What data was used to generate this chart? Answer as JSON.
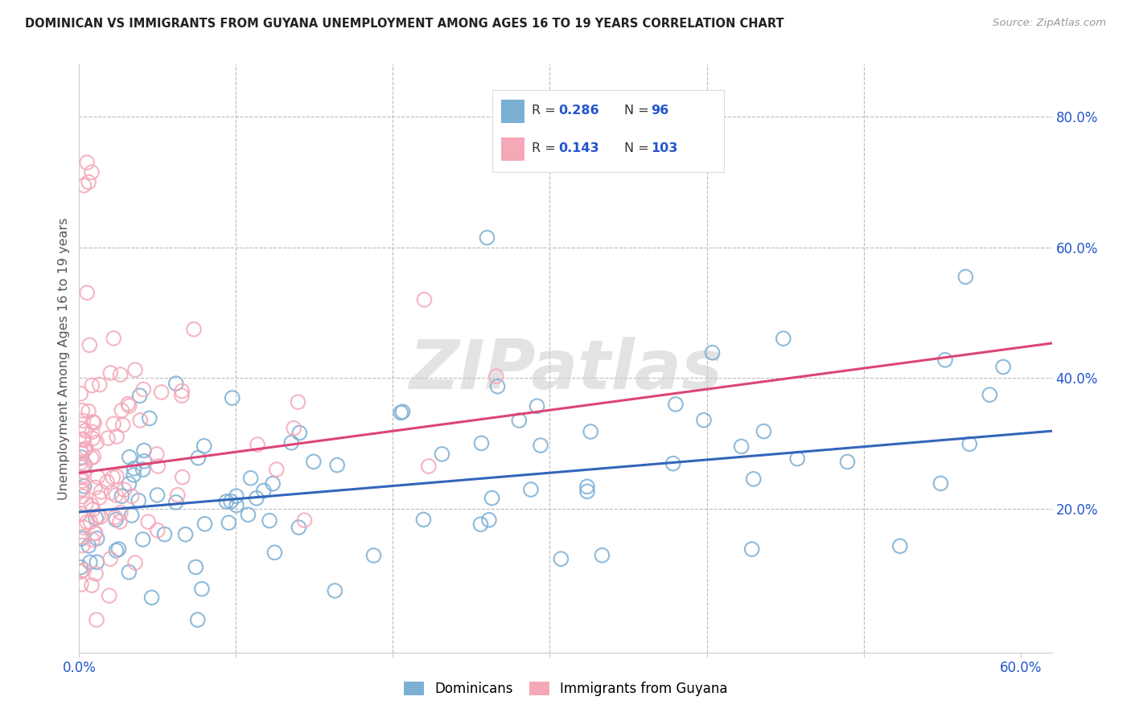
{
  "title": "DOMINICAN VS IMMIGRANTS FROM GUYANA UNEMPLOYMENT AMONG AGES 16 TO 19 YEARS CORRELATION CHART",
  "source": "Source: ZipAtlas.com",
  "ylabel": "Unemployment Among Ages 16 to 19 years",
  "xlim": [
    0.0,
    0.62
  ],
  "ylim": [
    -0.02,
    0.88
  ],
  "blue_color": "#7BAFD4",
  "pink_color": "#F4A8B8",
  "blue_line_color": "#3366BB",
  "pink_line_color": "#DD4477",
  "n_color": "#2255CC",
  "watermark": "ZIPatlas",
  "blue_R": 0.286,
  "blue_N": 96,
  "pink_R": 0.143,
  "pink_N": 103,
  "blue_intercept": 0.195,
  "blue_slope": 0.2,
  "pink_intercept": 0.255,
  "pink_slope": 0.32
}
